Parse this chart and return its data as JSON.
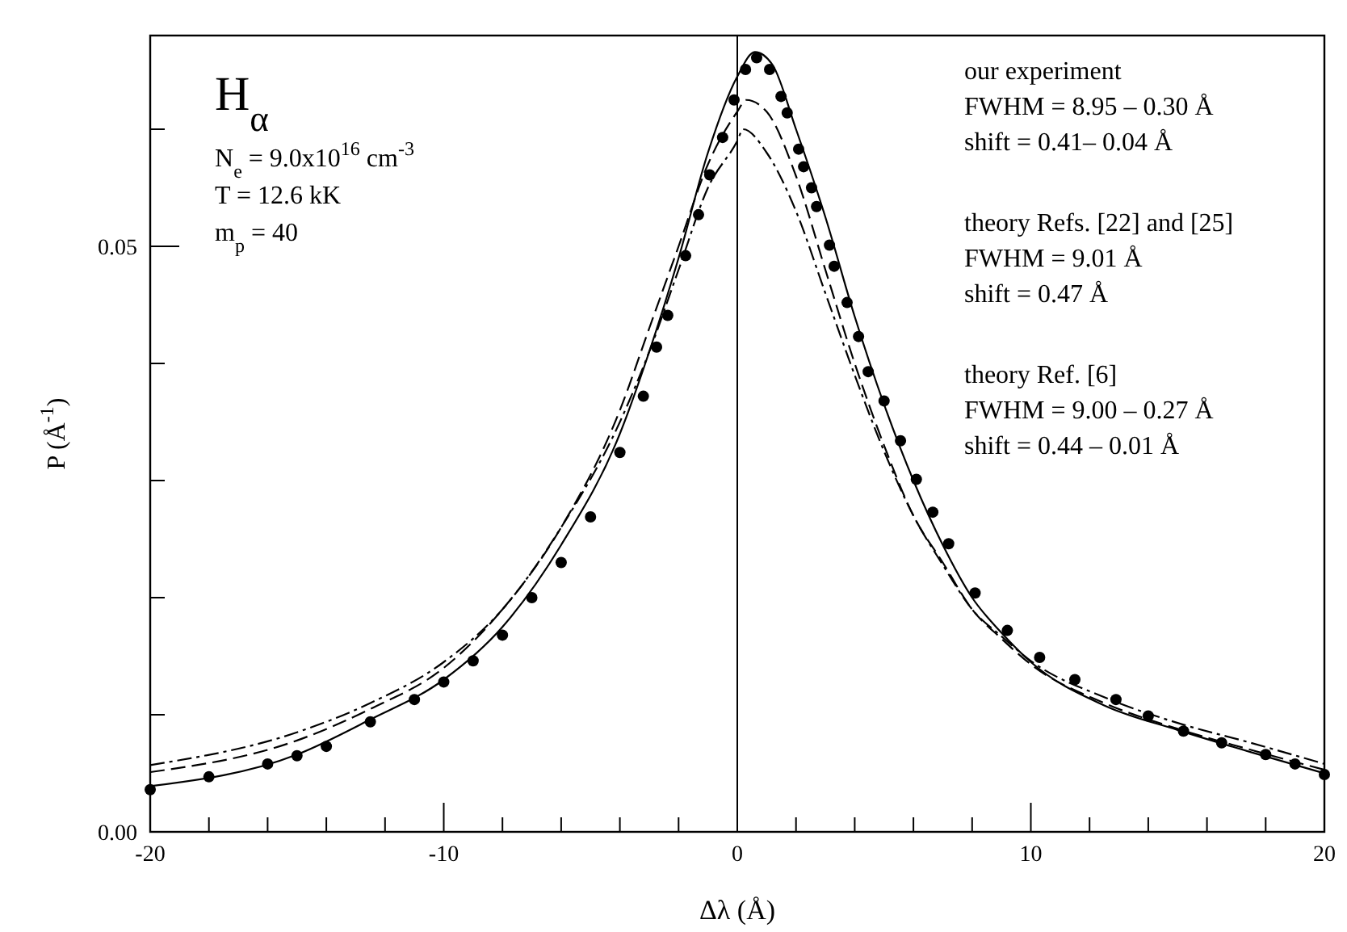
{
  "chart_data": {
    "type": "line",
    "xlabel": "Δλ (Å)",
    "ylabel": "P (Å$^{-1}$)",
    "xlim": [
      -20,
      20
    ],
    "ylim": [
      0,
      0.068
    ],
    "xticks": [
      -20,
      {
        "value": -18,
        "label": null
      },
      {
        "value": -16,
        "label": null
      },
      {
        "value": -14,
        "label": null
      },
      {
        "value": -12,
        "label": null
      },
      -10,
      {
        "value": -8,
        "label": null
      },
      {
        "value": -6,
        "label": null
      },
      {
        "value": -4,
        "label": null
      },
      {
        "value": -2,
        "label": null
      },
      0,
      {
        "value": 2,
        "label": null
      },
      {
        "value": 4,
        "label": null
      },
      {
        "value": 6,
        "label": null
      },
      {
        "value": 8,
        "label": null
      },
      10,
      {
        "value": 12,
        "label": null
      },
      {
        "value": 14,
        "label": null
      },
      {
        "value": 16,
        "label": null
      },
      {
        "value": 18,
        "label": null
      },
      20
    ],
    "yticks": [
      {
        "value": 0,
        "label": "0.00"
      },
      {
        "value": 0.01,
        "label": null
      },
      {
        "value": 0.02,
        "label": null
      },
      {
        "value": 0.03,
        "label": null
      },
      {
        "value": 0.04,
        "label": null
      },
      {
        "value": 0.05,
        "label": "0.05"
      },
      {
        "value": 0.06,
        "label": null
      }
    ],
    "grid": false,
    "ref_lines": [
      {
        "axis": "x",
        "value": 0,
        "color": "#000000"
      }
    ],
    "series": [
      {
        "type": "scatter",
        "marker": "circle",
        "color": "#000000",
        "x": [
          -20,
          -18,
          -16,
          -15,
          -14,
          -12.5,
          -11,
          -10,
          -9,
          -8,
          -7,
          -6,
          -5,
          -4,
          -3.2,
          -2.75,
          -2.37,
          -1.76,
          -1.32,
          -0.94,
          -0.5,
          -0.11,
          0.28,
          0.66,
          1.1,
          1.49,
          1.7,
          2.09,
          2.26,
          2.53,
          2.7,
          3.14,
          3.3,
          3.74,
          4.13,
          4.46,
          5.0,
          5.56,
          6.1,
          6.66,
          7.2,
          8.1,
          9.2,
          10.3,
          11.5,
          12.9,
          14,
          15.2,
          16.5,
          18,
          19,
          20
        ],
        "values": [
          0.0036,
          0.0047,
          0.0058,
          0.0065,
          0.0073,
          0.0094,
          0.0113,
          0.0128,
          0.0146,
          0.0168,
          0.02,
          0.023,
          0.0269,
          0.0324,
          0.0372,
          0.0414,
          0.0441,
          0.0492,
          0.0527,
          0.0561,
          0.0593,
          0.0625,
          0.0651,
          0.0661,
          0.0651,
          0.0628,
          0.0614,
          0.0583,
          0.0568,
          0.055,
          0.0534,
          0.0501,
          0.0483,
          0.0452,
          0.0423,
          0.0393,
          0.0368,
          0.0334,
          0.0301,
          0.0273,
          0.0246,
          0.0204,
          0.0172,
          0.0149,
          0.013,
          0.0113,
          0.0099,
          0.0086,
          0.0076,
          0.0066,
          0.0058,
          0.0049
        ]
      },
      {
        "line_style": "solid",
        "color": "#000000",
        "x": [
          -20,
          -15,
          -12.5,
          -10,
          -8,
          -6,
          -4,
          -3,
          -2,
          -1,
          0,
          0.6,
          1.2,
          2,
          3,
          4,
          5,
          6,
          7,
          8,
          9,
          10,
          12.5,
          15,
          17.5,
          20
        ],
        "values": [
          0.0039,
          0.0066,
          0.0096,
          0.013,
          0.0175,
          0.0245,
          0.034,
          0.041,
          0.049,
          0.058,
          0.0645,
          0.0666,
          0.0655,
          0.06,
          0.0525,
          0.044,
          0.0365,
          0.03,
          0.0245,
          0.02,
          0.017,
          0.0145,
          0.0108,
          0.0087,
          0.0068,
          0.005
        ]
      },
      {
        "line_style": "dashed",
        "color": "#000000",
        "x": [
          -20,
          -15,
          -12.5,
          -10,
          -8,
          -6,
          -4,
          -3,
          -2,
          -1,
          0,
          0.3,
          1,
          2,
          3,
          4,
          5,
          6,
          7,
          8,
          9,
          10,
          12.5,
          15,
          17.5,
          20
        ],
        "values": [
          0.0051,
          0.0078,
          0.0105,
          0.014,
          0.019,
          0.026,
          0.036,
          0.043,
          0.05,
          0.057,
          0.0615,
          0.0625,
          0.0615,
          0.056,
          0.048,
          0.04,
          0.033,
          0.027,
          0.023,
          0.019,
          0.0165,
          0.0143,
          0.011,
          0.0088,
          0.007,
          0.0053
        ]
      },
      {
        "line_style": "dashdot",
        "color": "#000000",
        "x": [
          -20,
          -15,
          -12.5,
          -10,
          -8,
          -6,
          -4,
          -3,
          -2,
          -1,
          0,
          0.2,
          1,
          2,
          3,
          4,
          5,
          6,
          7,
          8,
          9,
          10,
          12.5,
          15,
          17.5,
          20
        ],
        "values": [
          0.0057,
          0.0085,
          0.011,
          0.0145,
          0.019,
          0.026,
          0.035,
          0.041,
          0.048,
          0.055,
          0.059,
          0.06,
          0.058,
          0.053,
          0.046,
          0.039,
          0.0325,
          0.027,
          0.0228,
          0.019,
          0.0167,
          0.0146,
          0.0115,
          0.0093,
          0.0076,
          0.0058
        ]
      }
    ],
    "annotations": [
      "H$_{α}$",
      "N$_{e}$ = 9.0x10$^{16}$ cm$^{-3}$",
      "T = 12.6 kK",
      "m$_{p}$ = 40",
      "our experiment",
      "FWHM = 8.95 – 0.30 Å",
      "shift = 0.41– 0.04 Å",
      "theory Refs. [22] and [25]",
      "FWHM = 9.01 Å",
      "shift = 0.47 Å",
      "theory Ref. [6]",
      "FWHM = 9.00 – 0.27 Å",
      "shift = 0.44 – 0.01 Å"
    ]
  }
}
